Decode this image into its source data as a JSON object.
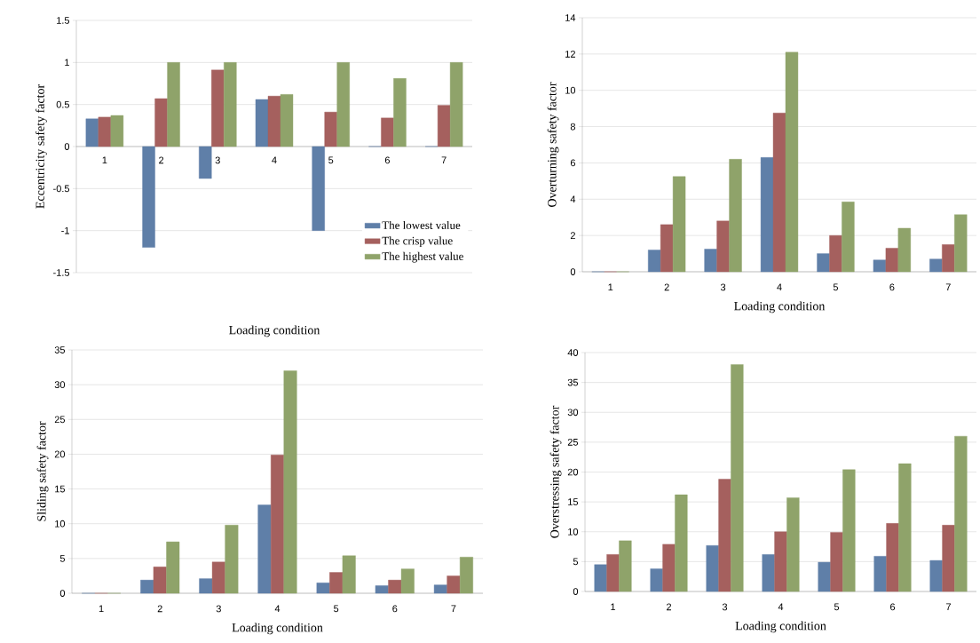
{
  "chart_data": [
    {
      "type": "bar",
      "xlabel": "Loading condition",
      "ylabel": "Eccentricity safety factor",
      "categories": [
        "1",
        "2",
        "3",
        "4",
        "5",
        "6",
        "7"
      ],
      "ylim": [
        -1.5,
        1.5
      ],
      "yticks": [
        -1.5,
        -1,
        -0.5,
        0,
        0.5,
        1,
        1.5
      ],
      "grid": "y",
      "legend": "bottom right",
      "series": [
        {
          "name": "The lowest value",
          "color": "#5f7fa8",
          "values": [
            0.33,
            -1.2,
            -0.38,
            0.56,
            -1.0,
            0,
            0
          ]
        },
        {
          "name": "The crisp value",
          "color": "#a5605e",
          "values": [
            0.35,
            0.57,
            0.91,
            0.6,
            0.41,
            0.34,
            0.49
          ]
        },
        {
          "name": "The highest value",
          "color": "#8fa36a",
          "values": [
            0.37,
            1,
            1,
            0.62,
            1,
            0.81,
            1
          ]
        }
      ]
    },
    {
      "type": "bar",
      "xlabel": "Loading condition",
      "ylabel": "Overturning safety factor",
      "categories": [
        "1",
        "2",
        "3",
        "4",
        "5",
        "6",
        "7"
      ],
      "ylim": [
        0,
        14
      ],
      "yticks": [
        0,
        2,
        4,
        6,
        8,
        10,
        12,
        14
      ],
      "grid": "y",
      "series": [
        {
          "color": "#5f7fa8",
          "values": [
            0,
            1.2,
            1.25,
            6.3,
            1.0,
            0.65,
            0.7
          ]
        },
        {
          "color": "#a5605e",
          "values": [
            0,
            2.6,
            2.8,
            8.75,
            2.0,
            1.3,
            1.5
          ]
        },
        {
          "color": "#8fa36a",
          "values": [
            0,
            5.25,
            6.2,
            12.1,
            3.85,
            2.4,
            3.15
          ]
        }
      ]
    },
    {
      "type": "bar",
      "xlabel": "Loading condition",
      "ylabel": "Sliding safety factor",
      "categories": [
        "1",
        "2",
        "3",
        "4",
        "5",
        "6",
        "7"
      ],
      "ylim": [
        0,
        35
      ],
      "yticks": [
        0,
        5,
        10,
        15,
        20,
        25,
        30,
        35
      ],
      "grid": "y",
      "series": [
        {
          "color": "#5f7fa8",
          "values": [
            0,
            1.9,
            2.1,
            12.7,
            1.5,
            1.1,
            1.2
          ]
        },
        {
          "color": "#a5605e",
          "values": [
            0,
            3.8,
            4.5,
            19.9,
            3.0,
            1.9,
            2.5
          ]
        },
        {
          "color": "#8fa36a",
          "values": [
            0,
            7.4,
            9.8,
            32,
            5.4,
            3.5,
            5.2
          ]
        }
      ]
    },
    {
      "type": "bar",
      "xlabel": "Loading condition",
      "ylabel": "Overstressing safety factor",
      "categories": [
        "1",
        "2",
        "3",
        "4",
        "5",
        "6",
        "7"
      ],
      "ylim": [
        0,
        40
      ],
      "yticks": [
        0,
        5,
        10,
        15,
        20,
        25,
        30,
        35,
        40
      ],
      "grid": "y",
      "series": [
        {
          "color": "#5f7fa8",
          "values": [
            4.5,
            3.8,
            7.7,
            6.2,
            4.9,
            5.9,
            5.2
          ]
        },
        {
          "color": "#a5605e",
          "values": [
            6.2,
            7.9,
            18.8,
            10,
            9.9,
            11.4,
            11.1
          ]
        },
        {
          "color": "#8fa36a",
          "values": [
            8.5,
            16.2,
            38,
            15.7,
            20.4,
            21.4,
            26
          ]
        }
      ]
    }
  ]
}
